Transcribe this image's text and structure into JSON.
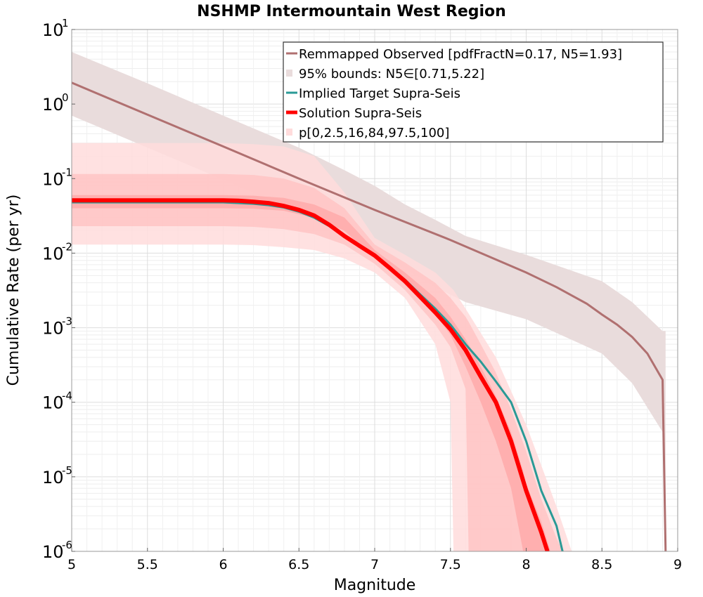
{
  "chart_data": {
    "type": "line",
    "title": "NSHMP Intermountain West Region",
    "xlabel": "Magnitude",
    "ylabel": "Cumulative Rate (per yr)",
    "xlim": [
      5,
      9
    ],
    "ylim": [
      1e-06,
      10
    ],
    "yscale": "log",
    "grid": true,
    "legend_position": "top-right",
    "x_ticks": [
      "5",
      "5.5",
      "6",
      "6.5",
      "7",
      "7.5",
      "8",
      "8.5",
      "9"
    ],
    "y_ticks": [
      {
        "base": "10",
        "exp": "-6"
      },
      {
        "base": "10",
        "exp": "-5"
      },
      {
        "base": "10",
        "exp": "-4"
      },
      {
        "base": "10",
        "exp": "-3"
      },
      {
        "base": "10",
        "exp": "-2"
      },
      {
        "base": "10",
        "exp": "-1"
      },
      {
        "base": "10",
        "exp": "0"
      },
      {
        "base": "10",
        "exp": "1"
      }
    ],
    "colors": {
      "observed": "#b07070",
      "observed_band": "#e9dcdc",
      "target": "#2a9a96",
      "solution": "#ff0000",
      "band_outer": "#ffdcdc",
      "band_mid": "#ffc4c4",
      "band_inner": "#ffaaaa"
    },
    "legend": [
      {
        "label": "Remmapped Observed [pdfFractN=0.17, N5=1.93]",
        "kind": "line",
        "color": "#b07070"
      },
      {
        "label": "95% bounds: N5∈[0.71,5.22]",
        "kind": "patch",
        "color": "#e9dcdc"
      },
      {
        "label": "Implied Target Supra-Seis",
        "kind": "line",
        "color": "#2a9a96"
      },
      {
        "label": "Solution Supra-Seis",
        "kind": "thickline",
        "color": "#ff0000"
      },
      {
        "label": "p[0,2.5,16,84,97.5,100]",
        "kind": "patch",
        "color": "#ffdcdc"
      }
    ],
    "series": [
      {
        "key": "observed",
        "x": [
          5.0,
          5.5,
          6.0,
          6.5,
          7.0,
          7.5,
          8.0,
          8.2,
          8.4,
          8.5,
          8.6,
          8.7,
          8.8,
          8.9,
          8.92
        ],
        "y": [
          1.93,
          0.72,
          0.27,
          0.1,
          0.038,
          0.015,
          0.0055,
          0.0035,
          0.0021,
          0.0015,
          0.0011,
          0.00075,
          0.00045,
          0.0002,
          1e-06
        ]
      },
      {
        "key": "observed_band",
        "x": [
          5.0,
          5.5,
          6.0,
          6.5,
          6.8,
          7.0,
          7.2,
          7.4,
          7.6,
          8.0,
          8.5,
          8.7,
          8.9,
          8.92
        ],
        "lower": [
          0.7,
          0.26,
          0.097,
          0.036,
          0.018,
          0.011,
          0.0062,
          0.0035,
          0.0022,
          0.0013,
          0.00045,
          0.00018,
          4e-05,
          1e-06
        ],
        "upper": [
          5.0,
          1.9,
          0.7,
          0.26,
          0.13,
          0.08,
          0.045,
          0.028,
          0.017,
          0.0095,
          0.0042,
          0.0022,
          0.0009,
          0.0009
        ]
      },
      {
        "key": "target",
        "x": [
          5.0,
          5.3,
          5.7,
          6.0,
          6.1,
          6.2,
          6.3,
          6.4,
          6.5,
          6.6,
          6.7,
          6.8,
          6.9,
          7.0,
          7.1,
          7.2,
          7.3,
          7.4,
          7.5,
          7.6,
          7.7,
          7.8,
          7.9,
          8.0,
          8.1,
          8.2,
          8.24
        ],
        "y": [
          0.048,
          0.048,
          0.048,
          0.048,
          0.047,
          0.046,
          0.044,
          0.041,
          0.036,
          0.03,
          0.023,
          0.017,
          0.0125,
          0.0093,
          0.0065,
          0.0044,
          0.0028,
          0.0018,
          0.0011,
          0.0006,
          0.00035,
          0.00019,
          0.0001,
          3e-05,
          6.5e-06,
          2.2e-06,
          1e-06
        ]
      },
      {
        "key": "solution",
        "x": [
          5.0,
          5.3,
          5.7,
          6.0,
          6.1,
          6.2,
          6.3,
          6.4,
          6.5,
          6.6,
          6.7,
          6.8,
          6.9,
          7.0,
          7.1,
          7.2,
          7.3,
          7.4,
          7.5,
          7.6,
          7.7,
          7.8,
          7.9,
          8.0,
          8.1,
          8.14
        ],
        "y": [
          0.051,
          0.051,
          0.051,
          0.051,
          0.0505,
          0.049,
          0.047,
          0.043,
          0.038,
          0.032,
          0.024,
          0.017,
          0.0125,
          0.0093,
          0.0063,
          0.0042,
          0.0026,
          0.0016,
          0.00095,
          0.0005,
          0.00022,
          0.0001,
          3e-05,
          6.5e-06,
          1.8e-06,
          1e-06
        ]
      }
    ],
    "percentile_bands": [
      {
        "key": "band_outer",
        "x": [
          5.0,
          5.5,
          6.0,
          6.2,
          6.4,
          6.6,
          6.8,
          7.0,
          7.2,
          7.4,
          7.5,
          7.52,
          7.6,
          7.8,
          8.0,
          8.2,
          8.3
        ],
        "lower": [
          0.013,
          0.013,
          0.013,
          0.0128,
          0.012,
          0.011,
          0.0085,
          0.0055,
          0.0025,
          0.0006,
          0.0001,
          1e-06,
          1e-06,
          1e-06,
          1e-06,
          1e-06,
          1e-06
        ],
        "upper": [
          0.3,
          0.3,
          0.3,
          0.29,
          0.27,
          0.2,
          0.065,
          0.016,
          0.0095,
          0.0055,
          0.0035,
          0.0032,
          0.0018,
          0.0004,
          5e-05,
          4e-06,
          1e-06
        ]
      },
      {
        "key": "band_mid",
        "x": [
          5.0,
          5.5,
          6.0,
          6.2,
          6.4,
          6.6,
          6.8,
          7.0,
          7.2,
          7.4,
          7.5,
          7.6,
          7.62,
          7.7,
          7.8,
          7.9,
          8.0,
          8.1,
          8.2,
          8.24
        ],
        "lower": [
          0.023,
          0.023,
          0.023,
          0.0225,
          0.021,
          0.018,
          0.013,
          0.0072,
          0.0032,
          0.0011,
          0.00055,
          0.00015,
          1e-06,
          1e-06,
          1e-06,
          1e-06,
          1e-06,
          1e-06,
          1e-06,
          1e-06
        ],
        "upper": [
          0.115,
          0.115,
          0.115,
          0.112,
          0.1,
          0.075,
          0.04,
          0.013,
          0.0075,
          0.004,
          0.0025,
          0.0014,
          0.0012,
          0.0006,
          0.00025,
          8e-05,
          2.2e-05,
          5e-06,
          1.5e-06,
          1e-06
        ]
      },
      {
        "key": "band_inner",
        "x": [
          5.0,
          5.5,
          6.0,
          6.2,
          6.4,
          6.6,
          6.8,
          7.0,
          7.2,
          7.4,
          7.5,
          7.6,
          7.7,
          7.8,
          7.9,
          7.98,
          8.0,
          8.1,
          8.16
        ],
        "lower": [
          0.04,
          0.04,
          0.04,
          0.0395,
          0.037,
          0.03,
          0.02,
          0.0085,
          0.0038,
          0.0015,
          0.0008,
          0.0003,
          0.0001,
          3e-05,
          7e-06,
          1e-06,
          1e-06,
          1e-06,
          1e-06
        ],
        "upper": [
          0.06,
          0.06,
          0.06,
          0.059,
          0.055,
          0.045,
          0.03,
          0.011,
          0.0055,
          0.0025,
          0.0014,
          0.0007,
          0.0003,
          0.00012,
          4e-05,
          1.2e-05,
          8e-06,
          2.5e-06,
          1e-06
        ]
      }
    ]
  }
}
